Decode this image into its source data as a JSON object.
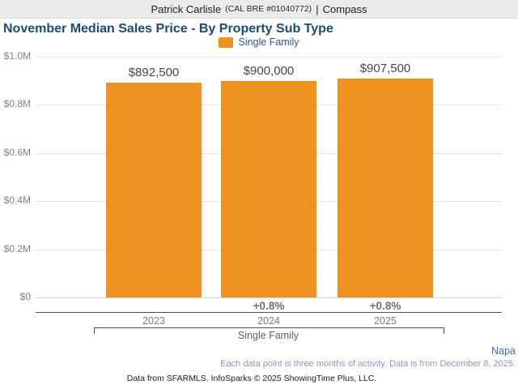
{
  "header": {
    "agent_name": "Patrick Carlisle",
    "license": "(CAL BRE #01040772)",
    "separator": "|",
    "brokerage": "Compass"
  },
  "chart_data": {
    "type": "bar",
    "title": "November Median Sales Price - By Property Sub Type",
    "legend": [
      {
        "label": "Single Family",
        "color": "#ef911e"
      }
    ],
    "legend_position": "top",
    "categories": [
      "2023",
      "2024",
      "2025"
    ],
    "series": [
      {
        "name": "Single Family",
        "values": [
          892500,
          900000,
          907500
        ]
      }
    ],
    "value_labels": [
      "$892,500",
      "$900,000",
      "$907,500"
    ],
    "change_labels": [
      "",
      "+0.8%",
      "+0.8%"
    ],
    "group_label": "Single Family",
    "xlabel": "",
    "ylabel": "",
    "ylim": [
      0,
      1000000
    ],
    "y_ticks": [
      {
        "value": 0,
        "label": "$0"
      },
      {
        "value": 200000,
        "label": "$0.2M"
      },
      {
        "value": 400000,
        "label": "$0.4M"
      },
      {
        "value": 600000,
        "label": "$0.6M"
      },
      {
        "value": 800000,
        "label": "$0.8M"
      },
      {
        "value": 1000000,
        "label": "$1.0M"
      }
    ],
    "grid": true
  },
  "footnotes": {
    "region": "Napa",
    "note": "Each data point is three months of activity. Data is from December 8, 2025.",
    "credit": "Data from SFARMLS. InfoSparks © 2025 ShowingTime Plus, LLC."
  }
}
